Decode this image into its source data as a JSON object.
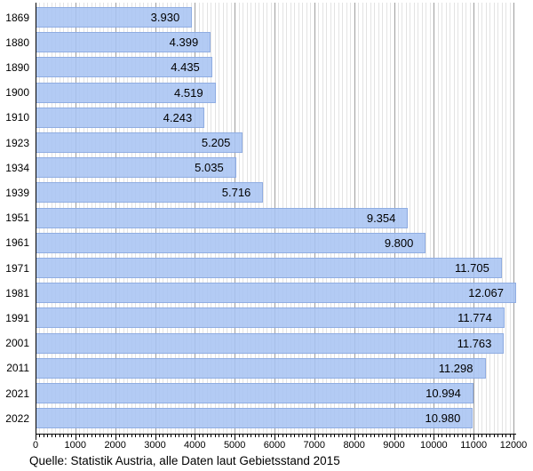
{
  "chart_data": {
    "type": "bar",
    "orientation": "horizontal",
    "categories": [
      "1869",
      "1880",
      "1890",
      "1900",
      "1910",
      "1923",
      "1934",
      "1939",
      "1951",
      "1961",
      "1971",
      "1981",
      "1991",
      "2001",
      "2011",
      "2021",
      "2022"
    ],
    "values": [
      3930,
      4399,
      4435,
      4519,
      4243,
      5205,
      5035,
      5716,
      9354,
      9800,
      11705,
      12067,
      11774,
      11763,
      11298,
      10994,
      10980
    ],
    "bar_labels": [
      "3.930",
      "4.399",
      "4.435",
      "4.519",
      "4.243",
      "5.205",
      "5.035",
      "5.716",
      "9.354",
      "9.800",
      "11.705",
      "12.067",
      "11.774",
      "11.763",
      "11.298",
      "10.994",
      "10.980"
    ],
    "xlim": [
      0,
      12000
    ],
    "x_major_tick_step": 1000,
    "x_minor_tick_step": 100,
    "x_tick_labels": [
      "0",
      "1000",
      "2000",
      "3000",
      "4000",
      "5000",
      "6000",
      "7000",
      "8000",
      "9000",
      "10000",
      "11000",
      "12000"
    ],
    "legend": "none",
    "grid": "vertical; minor every 100, major every 1000",
    "caption": "Quelle: Statistik Austria, alle Daten laut Gebietsstand 2015",
    "colors": {
      "bar_fill": "rgba(168,196,243,0.88)",
      "bar_border": "rgba(140,170,224,0.9)",
      "grid_minor": "#e3e3e3",
      "grid_major": "#9e9e9e",
      "axis": "#000000",
      "text": "#000000",
      "background": "#ffffff"
    }
  }
}
